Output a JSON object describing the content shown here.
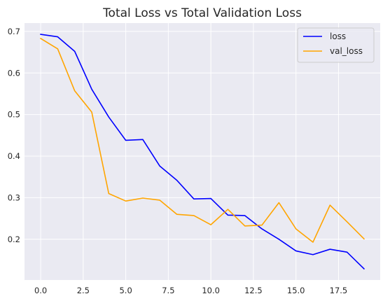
{
  "chart_data": {
    "type": "line",
    "title": "Total Loss vs Total Validation Loss",
    "xlabel": "",
    "ylabel": "",
    "xlim": [
      -0.95,
      19.95
    ],
    "ylim": [
      0.102,
      0.72
    ],
    "x_ticks": [
      0.0,
      2.5,
      5.0,
      7.5,
      10.0,
      12.5,
      15.0,
      17.5
    ],
    "x_tick_labels": [
      "0.0",
      "2.5",
      "5.0",
      "7.5",
      "10.0",
      "12.5",
      "15.0",
      "17.5"
    ],
    "y_ticks": [
      0.2,
      0.3,
      0.4,
      0.5,
      0.6,
      0.7
    ],
    "y_tick_labels": [
      "0.2",
      "0.3",
      "0.4",
      "0.5",
      "0.6",
      "0.7"
    ],
    "grid": true,
    "legend_position": "top-right",
    "x": [
      0,
      1,
      2,
      3,
      4,
      5,
      6,
      7,
      8,
      9,
      10,
      11,
      12,
      13,
      14,
      15,
      16,
      17,
      18,
      19
    ],
    "series": [
      {
        "name": "loss",
        "color": "#0000ff",
        "values": [
          0.693,
          0.687,
          0.652,
          0.561,
          0.494,
          0.438,
          0.44,
          0.376,
          0.342,
          0.297,
          0.298,
          0.258,
          0.257,
          0.225,
          0.2,
          0.172,
          0.163,
          0.176,
          0.169,
          0.129
        ]
      },
      {
        "name": "val_loss",
        "color": "#ffa500",
        "values": [
          0.683,
          0.658,
          0.557,
          0.506,
          0.31,
          0.292,
          0.299,
          0.294,
          0.26,
          0.257,
          0.235,
          0.272,
          0.232,
          0.234,
          0.288,
          0.225,
          0.193,
          0.282,
          0.242,
          0.201
        ]
      }
    ]
  }
}
